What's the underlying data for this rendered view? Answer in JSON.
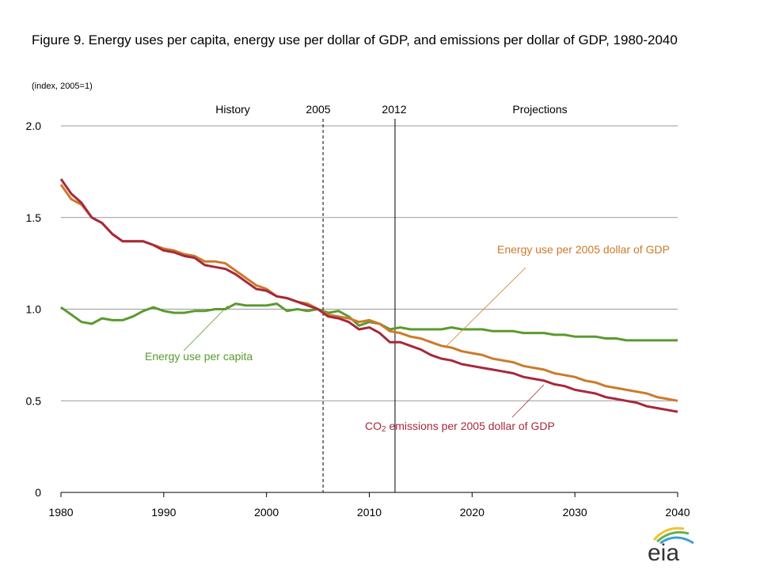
{
  "chart_data": {
    "type": "line",
    "title": "Figure 9. Energy uses per capita, energy use per dollar of GDP, and emissions per dollar of GDP, 1980-2040",
    "subtitle": "(index, 2005=1)",
    "xlim": [
      1980,
      2040
    ],
    "ylim": [
      0,
      2.0
    ],
    "x_ticks": [
      "1980",
      "1990",
      "2000",
      "2010",
      "2020",
      "2030",
      "2040"
    ],
    "y_ticks": [
      "0",
      "0.5",
      "1.0",
      "1.5",
      "2.0"
    ],
    "grid": "horizontal",
    "annotations": {
      "history": "History",
      "y2005": "2005",
      "y2012": "2012",
      "projections": "Projections"
    },
    "reference_lines": [
      {
        "x": 2005.5,
        "style": "dashed"
      },
      {
        "x": 2012.5,
        "style": "solid"
      }
    ],
    "x": [
      1980,
      1981,
      1982,
      1983,
      1984,
      1985,
      1986,
      1987,
      1988,
      1989,
      1990,
      1991,
      1992,
      1993,
      1994,
      1995,
      1996,
      1997,
      1998,
      1999,
      2000,
      2001,
      2002,
      2003,
      2004,
      2005,
      2006,
      2007,
      2008,
      2009,
      2010,
      2011,
      2012,
      2013,
      2014,
      2015,
      2016,
      2017,
      2018,
      2019,
      2020,
      2021,
      2022,
      2023,
      2024,
      2025,
      2026,
      2027,
      2028,
      2029,
      2030,
      2031,
      2032,
      2033,
      2034,
      2035,
      2036,
      2037,
      2038,
      2039,
      2040
    ],
    "series": [
      {
        "name": "Energy use per capita",
        "label": "Energy use per capita",
        "color": "#5b9a2f",
        "values": [
          1.01,
          0.97,
          0.93,
          0.92,
          0.95,
          0.94,
          0.94,
          0.96,
          0.99,
          1.01,
          0.99,
          0.98,
          0.98,
          0.99,
          0.99,
          1.0,
          1.0,
          1.03,
          1.02,
          1.02,
          1.02,
          1.03,
          0.99,
          1.0,
          0.99,
          1.0,
          0.98,
          0.99,
          0.96,
          0.91,
          0.93,
          0.92,
          0.89,
          0.9,
          0.89,
          0.89,
          0.89,
          0.89,
          0.9,
          0.89,
          0.89,
          0.89,
          0.88,
          0.88,
          0.88,
          0.87,
          0.87,
          0.87,
          0.86,
          0.86,
          0.85,
          0.85,
          0.85,
          0.84,
          0.84,
          0.83,
          0.83,
          0.83,
          0.83,
          0.83,
          0.83
        ]
      },
      {
        "name": "Energy use per 2005 dollar of GDP",
        "label": "Energy use per 2005 dollar of GDP",
        "color": "#cc7a2a",
        "values": [
          1.68,
          1.6,
          1.57,
          1.5,
          1.47,
          1.41,
          1.37,
          1.37,
          1.37,
          1.35,
          1.33,
          1.32,
          1.3,
          1.29,
          1.26,
          1.26,
          1.25,
          1.21,
          1.17,
          1.13,
          1.11,
          1.07,
          1.06,
          1.04,
          1.03,
          1.0,
          0.97,
          0.96,
          0.95,
          0.93,
          0.94,
          0.92,
          0.88,
          0.87,
          0.85,
          0.84,
          0.82,
          0.8,
          0.79,
          0.77,
          0.76,
          0.75,
          0.73,
          0.72,
          0.71,
          0.69,
          0.68,
          0.67,
          0.65,
          0.64,
          0.63,
          0.61,
          0.6,
          0.58,
          0.57,
          0.56,
          0.55,
          0.54,
          0.52,
          0.51,
          0.5
        ]
      },
      {
        "name": "CO2 emissions per 2005 dollar of GDP",
        "label_prefix": "CO",
        "label_sub": "2",
        "label_suffix": " emissions per 2005 dollar of GDP",
        "color": "#a8283c",
        "values": [
          1.71,
          1.63,
          1.58,
          1.5,
          1.47,
          1.41,
          1.37,
          1.37,
          1.37,
          1.35,
          1.32,
          1.31,
          1.29,
          1.28,
          1.24,
          1.23,
          1.22,
          1.19,
          1.15,
          1.11,
          1.1,
          1.07,
          1.06,
          1.04,
          1.02,
          1.0,
          0.96,
          0.95,
          0.93,
          0.89,
          0.9,
          0.87,
          0.82,
          0.82,
          0.8,
          0.78,
          0.75,
          0.73,
          0.72,
          0.7,
          0.69,
          0.68,
          0.67,
          0.66,
          0.65,
          0.63,
          0.62,
          0.61,
          0.59,
          0.58,
          0.56,
          0.55,
          0.54,
          0.52,
          0.51,
          0.5,
          0.49,
          0.47,
          0.46,
          0.45,
          0.44
        ]
      }
    ]
  },
  "logo": {
    "text": "eia"
  }
}
